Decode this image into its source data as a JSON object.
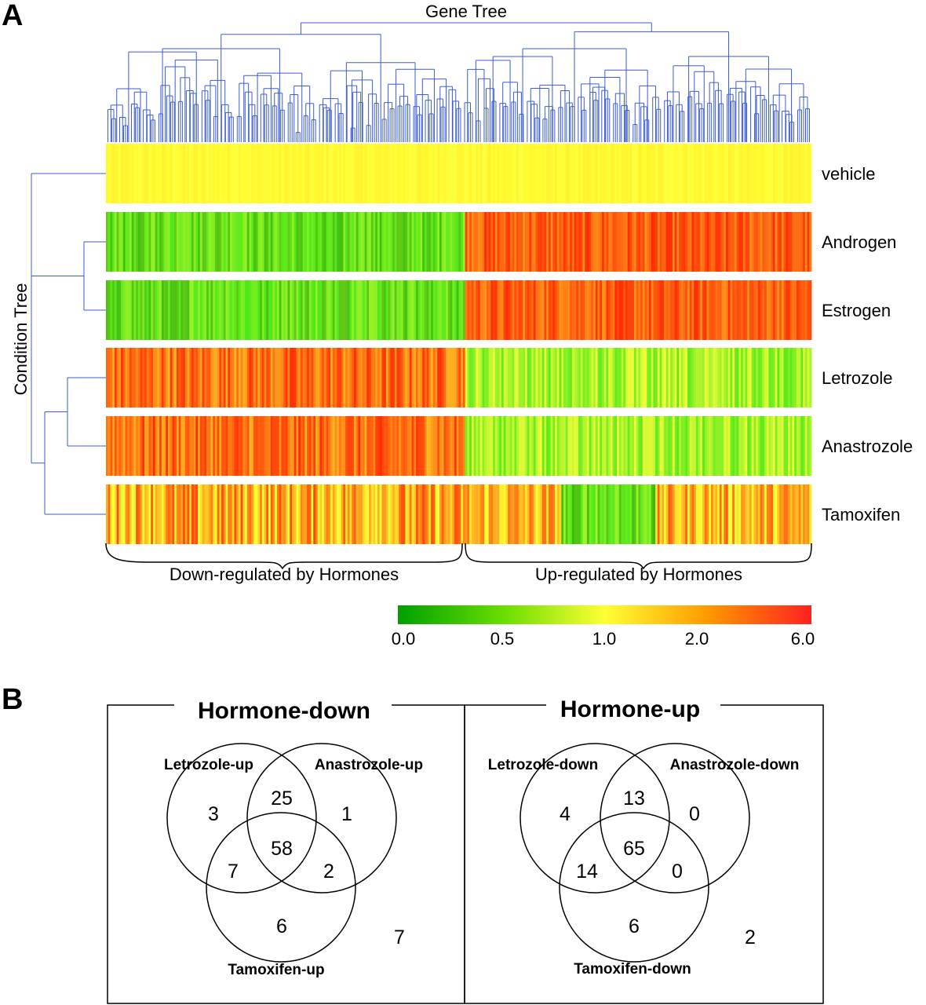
{
  "panels": {
    "a": "A",
    "b": "B"
  },
  "chart_data": [
    {
      "type": "heatmap",
      "title": "Gene Tree",
      "ylabel": "Condition Tree",
      "rows": [
        {
          "name": "vehicle",
          "profile": "flat"
        },
        {
          "name": "Androgen",
          "profile": "down-up"
        },
        {
          "name": "Estrogen",
          "profile": "down-up"
        },
        {
          "name": "Letrozole",
          "profile": "up-down"
        },
        {
          "name": "Anastrozole",
          "profile": "up-down"
        },
        {
          "name": "Tamoxifen",
          "profile": "mixed"
        }
      ],
      "column_groups": [
        {
          "label": "Down-regulated by Hormones",
          "fraction": 0.505
        },
        {
          "label": "Up-regulated by Hormones",
          "fraction": 0.495
        }
      ],
      "colorbar": {
        "ticks": [
          "0.0",
          "0.5",
          "1.0",
          "2.0",
          "6.0"
        ],
        "values": [
          0.0,
          0.5,
          1.0,
          2.0,
          6.0
        ],
        "colors": [
          "#00a000",
          "#66dd00",
          "#ffff33",
          "#ff9900",
          "#ff2020"
        ]
      },
      "colors": {
        "dendrogram": "#3b5bd6"
      }
    },
    {
      "type": "venn",
      "title": "Hormone-down",
      "sets": [
        "Letrozole-up",
        "Anastrozole-up",
        "Tamoxifen-up"
      ],
      "regions": {
        "L_only": 3,
        "A_only": 1,
        "T_only": 6,
        "LA": 25,
        "LT": 7,
        "AT": 2,
        "LAT": 58,
        "none": 7
      }
    },
    {
      "type": "venn",
      "title": "Hormone-up",
      "sets": [
        "Letrozole-down",
        "Anastrozole-down",
        "Tamoxifen-down"
      ],
      "regions": {
        "L_only": 4,
        "A_only": 0,
        "T_only": 6,
        "LA": 13,
        "LT": 14,
        "AT": 0,
        "LAT": 65,
        "none": 2
      }
    }
  ]
}
